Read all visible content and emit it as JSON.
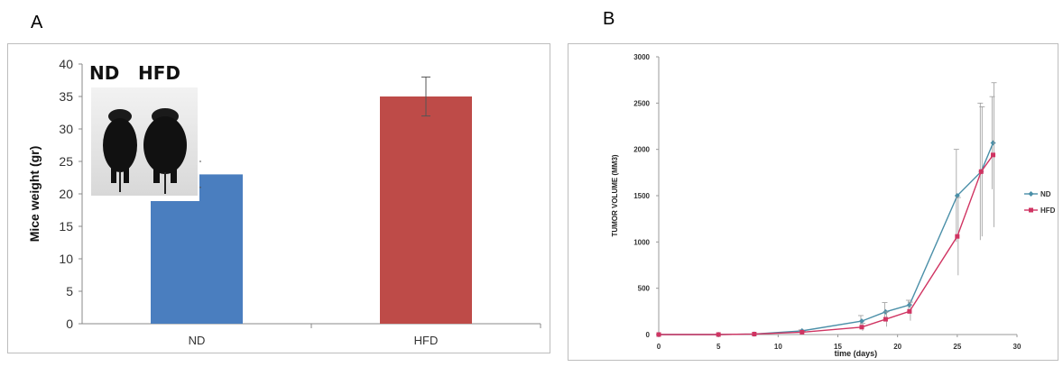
{
  "labels": {
    "panel_a": "A",
    "panel_b": "B"
  },
  "inset": {
    "label_nd": "ND",
    "label_hfd": "HFD"
  },
  "colors": {
    "nd_bar": "#4a7ebf",
    "hfd_bar": "#be4b48",
    "nd_line": "#4a8fa8",
    "hfd_line": "#d03462",
    "error": "#555555"
  },
  "chart_data": [
    {
      "type": "bar",
      "categories": [
        "ND",
        "HFD"
      ],
      "values": [
        23,
        35
      ],
      "errors": [
        2,
        3
      ],
      "ylabel": "Mice weight (gr)",
      "ylim": [
        0,
        40
      ],
      "yticks": [
        0,
        5,
        10,
        15,
        20,
        25,
        30,
        35,
        40
      ],
      "grid": false
    },
    {
      "type": "line",
      "xlabel": "time (days)",
      "ylabel": "TUMOR VOLUME (MM3)",
      "xlim": [
        0,
        30
      ],
      "ylim": [
        0,
        3000
      ],
      "xticks": [
        0,
        5,
        10,
        15,
        20,
        25,
        30
      ],
      "yticks": [
        0,
        500,
        1000,
        1500,
        2000,
        2500,
        3000
      ],
      "legend_position": "right",
      "series": [
        {
          "name": "ND",
          "color": "#4a8fa8",
          "x": [
            0,
            5,
            8,
            12,
            17,
            19,
            21,
            25,
            27,
            28
          ],
          "y": [
            0,
            0,
            5,
            40,
            145,
            245,
            320,
            1500,
            1760,
            2070
          ],
          "err": [
            0,
            0,
            0,
            10,
            60,
            100,
            50,
            500,
            740,
            500
          ]
        },
        {
          "name": "HFD",
          "color": "#d03462",
          "x": [
            0,
            5,
            8,
            12,
            17,
            19,
            21,
            25,
            27,
            28
          ],
          "y": [
            0,
            0,
            5,
            25,
            80,
            165,
            250,
            1060,
            1760,
            1940
          ],
          "err": [
            0,
            0,
            0,
            10,
            40,
            80,
            100,
            420,
            700,
            780
          ]
        }
      ]
    }
  ]
}
